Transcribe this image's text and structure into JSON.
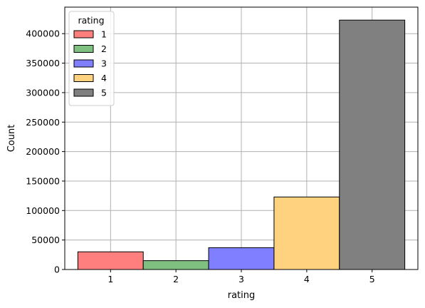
{
  "chart_data": {
    "type": "bar",
    "title": "",
    "xlabel": "rating",
    "ylabel": "Count",
    "categories": [
      "1",
      "2",
      "3",
      "4",
      "5"
    ],
    "values": [
      30000,
      15000,
      37000,
      123000,
      423000
    ],
    "colors": [
      "#ff7f7f",
      "#7fbf7f",
      "#7f7fff",
      "#ffd27f",
      "#808080"
    ],
    "xlim": [
      0.3,
      5.7
    ],
    "ylim": [
      0,
      445000
    ],
    "yticks": [
      0,
      50000,
      100000,
      150000,
      200000,
      250000,
      300000,
      350000,
      400000
    ],
    "ytick_labels": [
      "0",
      "50000",
      "100000",
      "150000",
      "200000",
      "250000",
      "300000",
      "350000",
      "400000"
    ],
    "grid": true,
    "legend": {
      "title": "rating",
      "placement": "top-left",
      "entries": [
        "1",
        "2",
        "3",
        "4",
        "5"
      ]
    }
  }
}
